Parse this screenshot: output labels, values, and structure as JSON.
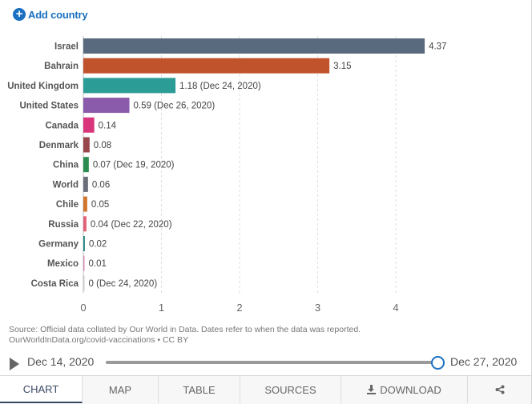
{
  "header": {
    "add_country_label": "Add country",
    "add_icon": "plus-circle-icon"
  },
  "chart_data": {
    "type": "bar",
    "orientation": "horizontal",
    "categories": [
      "Israel",
      "Bahrain",
      "United Kingdom",
      "United States",
      "Canada",
      "Denmark",
      "China",
      "World",
      "Chile",
      "Russia",
      "Germany",
      "Mexico",
      "Costa Rica"
    ],
    "values": [
      4.37,
      3.15,
      1.18,
      0.59,
      0.14,
      0.08,
      0.07,
      0.06,
      0.05,
      0.04,
      0.02,
      0.01,
      0
    ],
    "value_labels": [
      "4.37",
      "3.15",
      "1.18 (Dec 24, 2020)",
      "0.59 (Dec 26, 2020)",
      "0.14",
      "0.08",
      "0.07 (Dec 19, 2020)",
      "0.06",
      "0.05",
      "0.04 (Dec 22, 2020)",
      "0.02",
      "0.01",
      "0 (Dec 24, 2020)"
    ],
    "colors": [
      "#5a6a7e",
      "#c0522c",
      "#2b9c96",
      "#8a5aab",
      "#d9357b",
      "#98464c",
      "#2a8c4e",
      "#6b6f7a",
      "#d0752f",
      "#e0637a",
      "#2b8b86",
      "#d98cb3",
      "#cccccc"
    ],
    "xlim": [
      0,
      4.5
    ],
    "xticks": [
      0,
      1,
      2,
      3,
      4
    ],
    "xtick_labels": [
      "0",
      "1",
      "2",
      "3",
      "4"
    ],
    "grid": "vertical dashed"
  },
  "source_note": {
    "line1": "Source: Official data collated by Our World in Data. Dates refer to when the data was reported.",
    "line2": "OurWorldInData.org/covid-vaccinations • CC BY"
  },
  "timeline": {
    "start_label": "Dec 14, 2020",
    "end_label": "Dec 27, 2020",
    "position": 1.0
  },
  "tabs": [
    {
      "label": "CHART",
      "active": true
    },
    {
      "label": "MAP",
      "active": false
    },
    {
      "label": "TABLE",
      "active": false
    },
    {
      "label": "SOURCES",
      "active": false
    },
    {
      "label": "DOWNLOAD",
      "active": false,
      "icon": "download-icon"
    },
    {
      "label": "",
      "active": false,
      "icon": "share-icon"
    }
  ]
}
